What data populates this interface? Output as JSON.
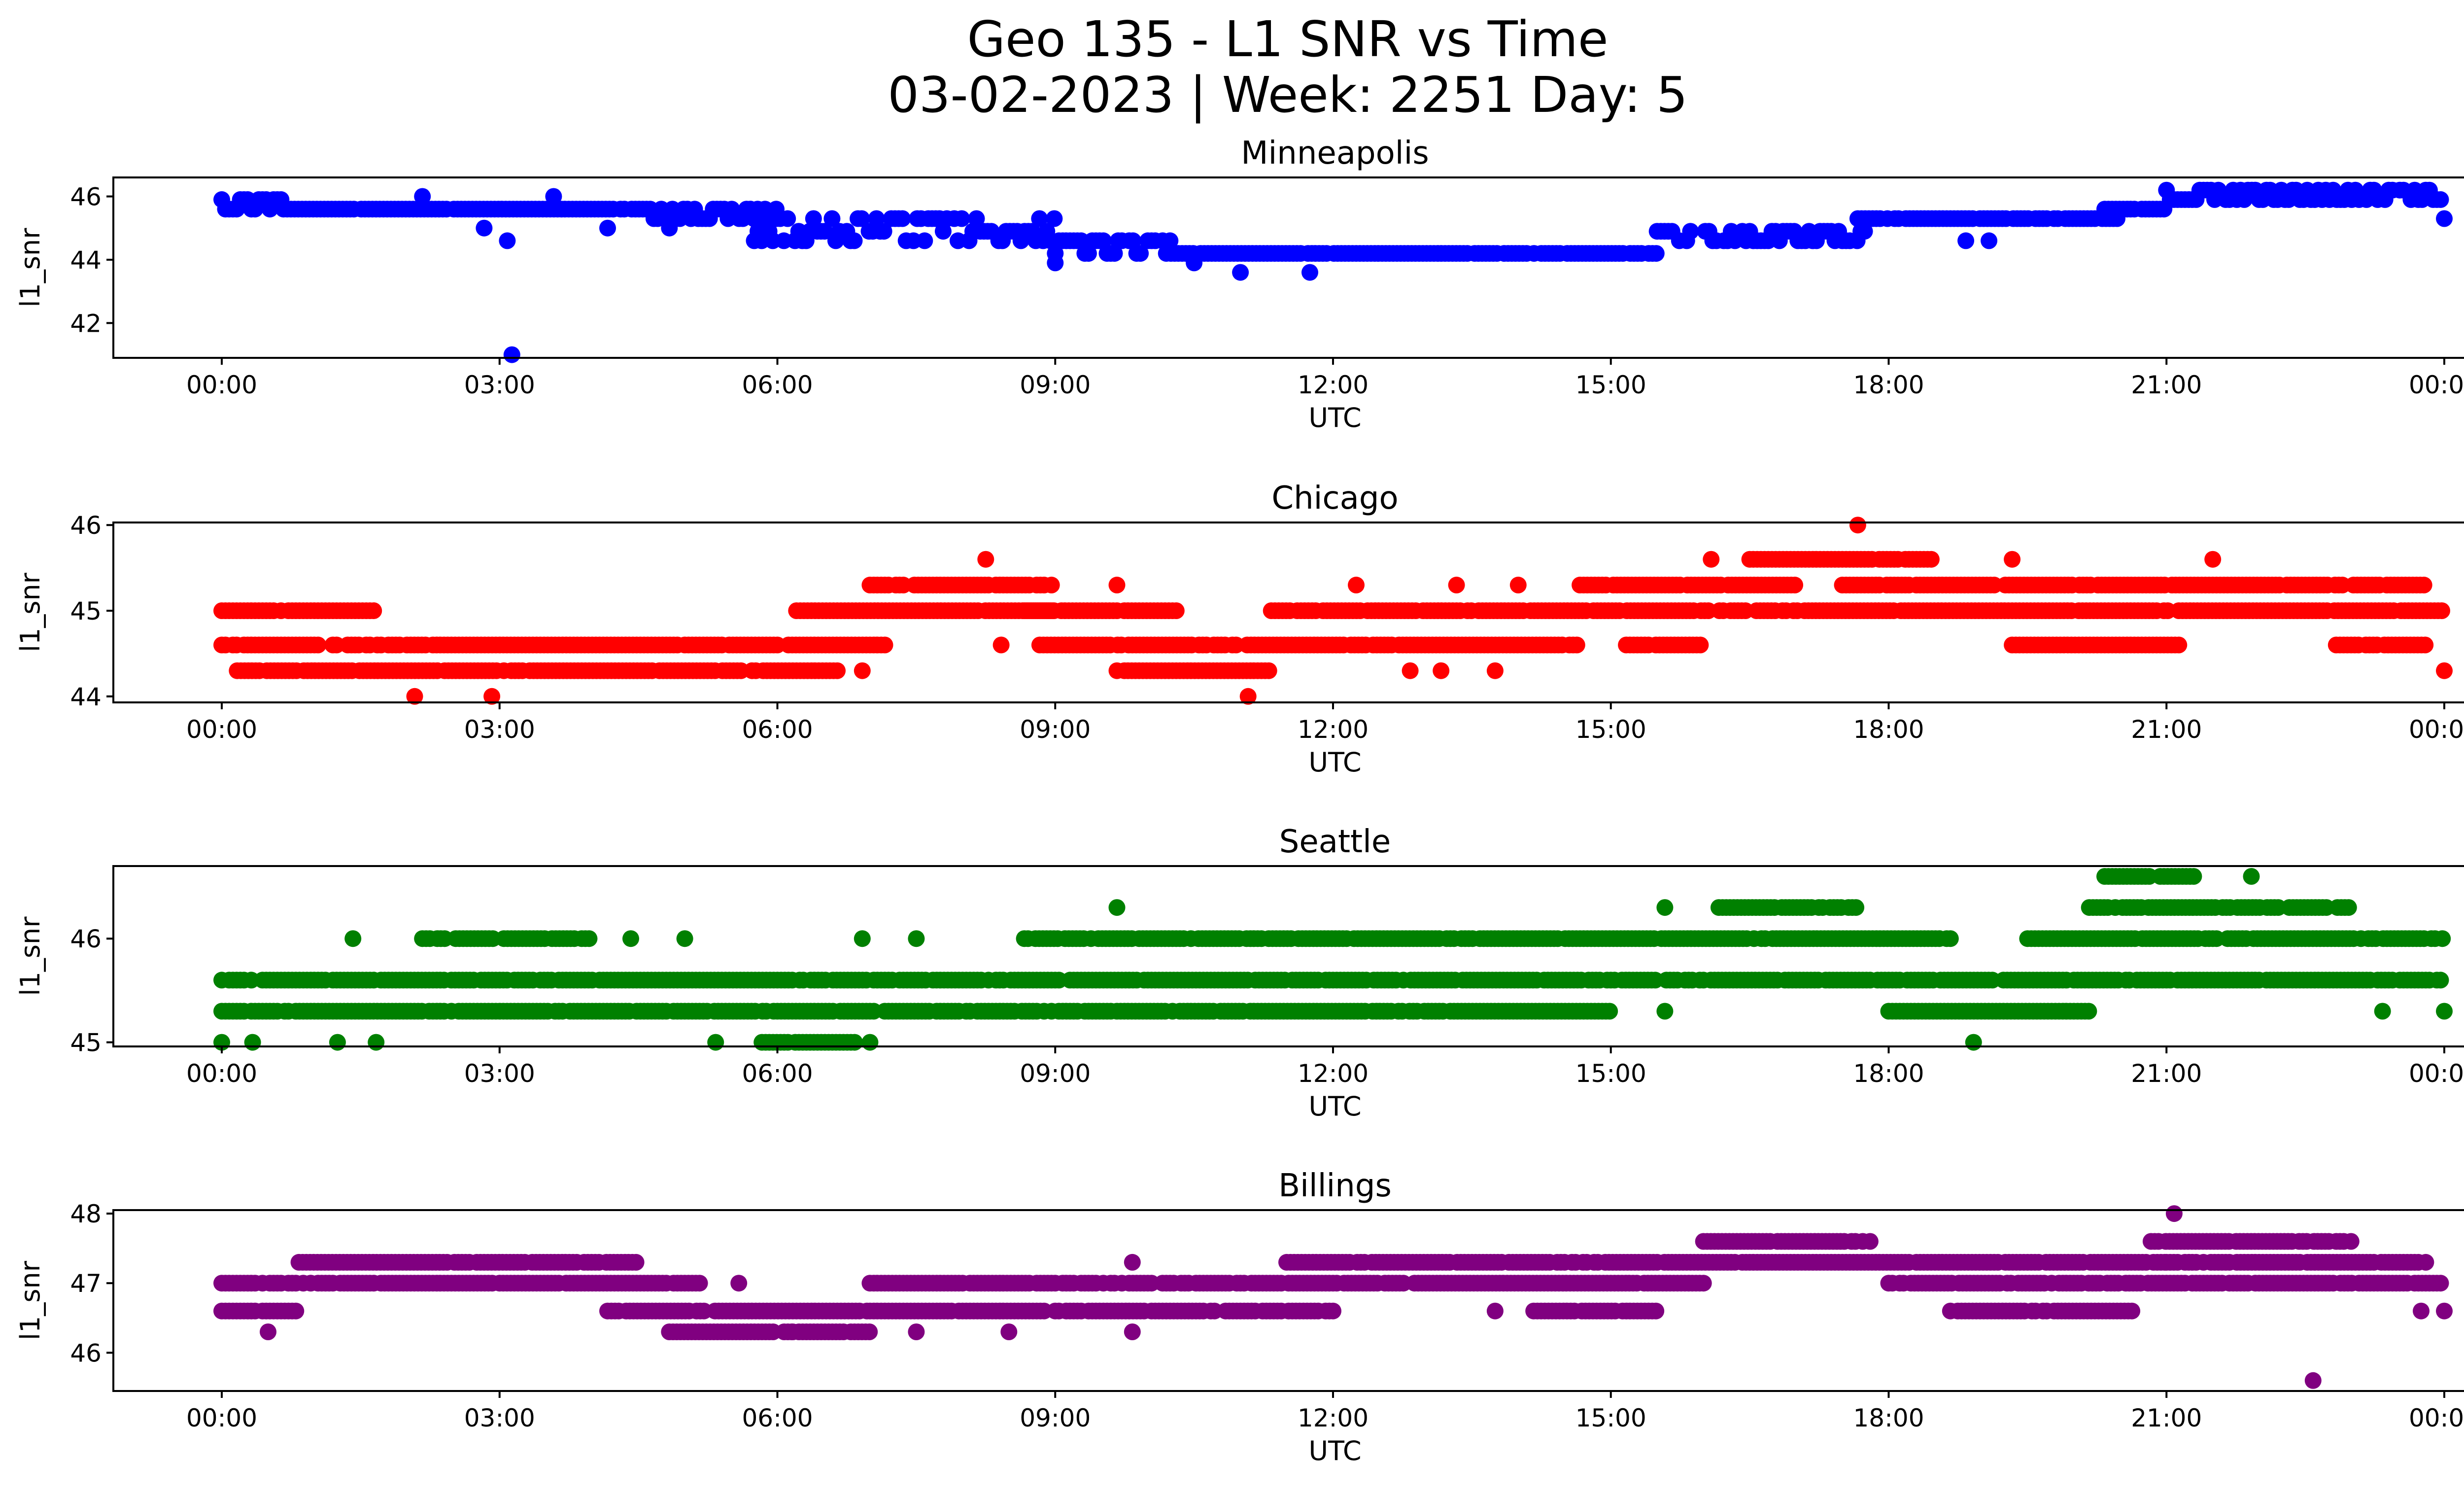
{
  "figure": {
    "title_line1": "Geo 135 - L1 SNR vs Time",
    "title_line2": "03-02-2023 | Week: 2251 Day: 5"
  },
  "chart_data": [
    {
      "type": "scatter",
      "title": "Minneapolis",
      "xlabel": "UTC",
      "ylabel": "l1_snr",
      "color": "#0000ff",
      "x_ticks": [
        "00:00",
        "03:00",
        "06:00",
        "09:00",
        "12:00",
        "15:00",
        "18:00",
        "21:00",
        "00:00"
      ],
      "y_ticks": [
        42,
        44,
        46
      ],
      "xlim": [
        "00:00",
        "24:00"
      ],
      "ylim": [
        40.9,
        46.6
      ],
      "grid": false,
      "segments": [
        {
          "from": "00:00",
          "to": "00:40",
          "values": [
            45.9,
            45.6
          ]
        },
        {
          "from": "00:40",
          "to": "04:40",
          "values": [
            45.6
          ]
        },
        {
          "from": "04:40",
          "to": "06:00",
          "values": [
            45.6,
            45.3
          ]
        },
        {
          "from": "05:45",
          "to": "09:00",
          "values": [
            45.3,
            44.9,
            44.6
          ]
        },
        {
          "from": "09:00",
          "to": "10:15",
          "values": [
            44.6,
            44.2
          ]
        },
        {
          "from": "10:15",
          "to": "15:30",
          "values": [
            44.2
          ]
        },
        {
          "from": "15:30",
          "to": "17:45",
          "values": [
            44.6,
            44.9
          ]
        },
        {
          "from": "17:40",
          "to": "20:30",
          "values": [
            45.3
          ]
        },
        {
          "from": "20:20",
          "to": "21:00",
          "values": [
            45.6
          ]
        },
        {
          "from": "21:00",
          "to": "24:00",
          "values": [
            45.9,
            46.2
          ]
        }
      ],
      "outliers": [
        {
          "x": "03:08",
          "y": 41.0
        },
        {
          "x": "03:05",
          "y": 44.6
        },
        {
          "x": "02:50",
          "y": 45.0
        },
        {
          "x": "11:00",
          "y": 43.6
        },
        {
          "x": "11:45",
          "y": 43.6
        },
        {
          "x": "09:00",
          "y": 43.9
        },
        {
          "x": "03:35",
          "y": 46.0
        },
        {
          "x": "02:10",
          "y": 46.0
        },
        {
          "x": "18:50",
          "y": 44.6
        },
        {
          "x": "04:10",
          "y": 45.0
        },
        {
          "x": "04:50",
          "y": 45.0
        },
        {
          "x": "10:30",
          "y": 43.9
        },
        {
          "x": "24:00",
          "y": 45.3
        },
        {
          "x": "19:05",
          "y": 44.6
        }
      ]
    },
    {
      "type": "scatter",
      "title": "Chicago",
      "xlabel": "UTC",
      "ylabel": "l1_snr",
      "color": "#ff0000",
      "x_ticks": [
        "00:00",
        "03:00",
        "06:00",
        "09:00",
        "12:00",
        "15:00",
        "18:00",
        "21:00",
        "00:00"
      ],
      "y_ticks": [
        44,
        45,
        46
      ],
      "xlim": [
        "00:00",
        "24:00"
      ],
      "ylim": [
        43.93,
        46.03
      ],
      "grid": false,
      "segments": [
        {
          "from": "00:00",
          "to": "07:10",
          "values": [
            44.6
          ]
        },
        {
          "from": "00:00",
          "to": "01:40",
          "values": [
            45.0
          ]
        },
        {
          "from": "00:10",
          "to": "06:40",
          "values": [
            44.3
          ]
        },
        {
          "from": "06:10",
          "to": "09:00",
          "values": [
            45.0
          ]
        },
        {
          "from": "07:00",
          "to": "09:00",
          "values": [
            45.3
          ]
        },
        {
          "from": "08:50",
          "to": "14:40",
          "values": [
            44.6
          ]
        },
        {
          "from": "08:40",
          "to": "10:20",
          "values": [
            45.0
          ]
        },
        {
          "from": "09:40",
          "to": "11:20",
          "values": [
            44.3
          ]
        },
        {
          "from": "11:20",
          "to": "24:00",
          "values": [
            45.0
          ]
        },
        {
          "from": "14:40",
          "to": "17:00",
          "values": [
            45.3
          ]
        },
        {
          "from": "15:10",
          "to": "16:00",
          "values": [
            44.6
          ]
        },
        {
          "from": "16:30",
          "to": "18:30",
          "values": [
            45.6
          ]
        },
        {
          "from": "17:30",
          "to": "23:50",
          "values": [
            45.3
          ]
        },
        {
          "from": "19:20",
          "to": "21:10",
          "values": [
            44.6
          ]
        },
        {
          "from": "22:50",
          "to": "23:50",
          "values": [
            44.6
          ]
        }
      ],
      "outliers": [
        {
          "x": "02:05",
          "y": 44.0
        },
        {
          "x": "02:55",
          "y": 44.0
        },
        {
          "x": "11:05",
          "y": 44.0
        },
        {
          "x": "17:40",
          "y": 46.0
        },
        {
          "x": "08:15",
          "y": 45.6
        },
        {
          "x": "16:05",
          "y": 45.6
        },
        {
          "x": "19:20",
          "y": 45.6
        },
        {
          "x": "21:30",
          "y": 45.6
        },
        {
          "x": "12:15",
          "y": 45.3
        },
        {
          "x": "13:20",
          "y": 45.3
        },
        {
          "x": "14:00",
          "y": 45.3
        },
        {
          "x": "09:40",
          "y": 45.3
        },
        {
          "x": "13:10",
          "y": 44.3
        },
        {
          "x": "13:45",
          "y": 44.3
        },
        {
          "x": "12:50",
          "y": 44.3
        },
        {
          "x": "24:00",
          "y": 44.3
        },
        {
          "x": "06:55",
          "y": 44.3
        },
        {
          "x": "08:25",
          "y": 44.6
        }
      ]
    },
    {
      "type": "scatter",
      "title": "Seattle",
      "xlabel": "UTC",
      "ylabel": "l1_snr",
      "color": "#008000",
      "x_ticks": [
        "00:00",
        "03:00",
        "06:00",
        "09:00",
        "12:00",
        "15:00",
        "18:00",
        "21:00",
        "00:00"
      ],
      "y_ticks": [
        45,
        46
      ],
      "xlim": [
        "00:00",
        "24:00"
      ],
      "ylim": [
        44.96,
        46.7
      ],
      "grid": false,
      "segments": [
        {
          "from": "00:00",
          "to": "24:00",
          "values": [
            45.6
          ]
        },
        {
          "from": "00:00",
          "to": "09:40",
          "values": [
            45.3
          ]
        },
        {
          "from": "09:40",
          "to": "15:00",
          "values": [
            45.3
          ]
        },
        {
          "from": "18:00",
          "to": "20:10",
          "values": [
            45.3
          ]
        },
        {
          "from": "02:10",
          "to": "04:00",
          "values": [
            46.0
          ]
        },
        {
          "from": "08:40",
          "to": "18:40",
          "values": [
            46.0
          ]
        },
        {
          "from": "19:30",
          "to": "24:00",
          "values": [
            46.0
          ]
        },
        {
          "from": "16:10",
          "to": "17:40",
          "values": [
            46.3
          ]
        },
        {
          "from": "20:10",
          "to": "23:00",
          "values": [
            46.3
          ]
        },
        {
          "from": "20:20",
          "to": "21:20",
          "values": [
            46.6
          ]
        },
        {
          "from": "05:50",
          "to": "06:50",
          "values": [
            45.0
          ]
        }
      ],
      "outliers": [
        {
          "x": "00:00",
          "y": 45.0
        },
        {
          "x": "00:20",
          "y": 45.0
        },
        {
          "x": "01:15",
          "y": 45.0
        },
        {
          "x": "01:40",
          "y": 45.0
        },
        {
          "x": "05:20",
          "y": 45.0
        },
        {
          "x": "07:00",
          "y": 45.0
        },
        {
          "x": "18:55",
          "y": 45.0
        },
        {
          "x": "01:25",
          "y": 46.0
        },
        {
          "x": "04:25",
          "y": 46.0
        },
        {
          "x": "05:00",
          "y": 46.0
        },
        {
          "x": "06:55",
          "y": 46.0
        },
        {
          "x": "07:30",
          "y": 46.0
        },
        {
          "x": "09:40",
          "y": 46.3
        },
        {
          "x": "15:35",
          "y": 46.3
        },
        {
          "x": "21:55",
          "y": 46.6
        },
        {
          "x": "23:20",
          "y": 45.3
        },
        {
          "x": "24:00",
          "y": 45.3
        },
        {
          "x": "15:35",
          "y": 45.3
        }
      ]
    },
    {
      "type": "scatter",
      "title": "Billings",
      "xlabel": "UTC",
      "ylabel": "l1_snr",
      "color": "#800080",
      "x_ticks": [
        "00:00",
        "03:00",
        "06:00",
        "09:00",
        "12:00",
        "15:00",
        "18:00",
        "21:00",
        "00:00"
      ],
      "y_ticks": [
        46,
        47,
        48
      ],
      "xlim": [
        "00:00",
        "24:00"
      ],
      "ylim": [
        45.45,
        48.05
      ],
      "grid": false,
      "segments": [
        {
          "from": "00:00",
          "to": "05:10",
          "values": [
            47.0
          ]
        },
        {
          "from": "00:00",
          "to": "00:50",
          "values": [
            46.6
          ]
        },
        {
          "from": "00:50",
          "to": "04:30",
          "values": [
            47.3
          ]
        },
        {
          "from": "04:10",
          "to": "07:00",
          "values": [
            46.6
          ]
        },
        {
          "from": "04:50",
          "to": "07:00",
          "values": [
            46.3
          ]
        },
        {
          "from": "07:00",
          "to": "16:00",
          "values": [
            47.0
          ]
        },
        {
          "from": "07:00",
          "to": "12:00",
          "values": [
            46.6
          ]
        },
        {
          "from": "11:30",
          "to": "21:00",
          "values": [
            47.3
          ]
        },
        {
          "from": "14:10",
          "to": "15:30",
          "values": [
            46.6
          ]
        },
        {
          "from": "16:00",
          "to": "17:50",
          "values": [
            47.6
          ]
        },
        {
          "from": "18:40",
          "to": "20:40",
          "values": [
            46.6
          ]
        },
        {
          "from": "18:00",
          "to": "24:00",
          "values": [
            47.0
          ]
        },
        {
          "from": "20:50",
          "to": "23:00",
          "values": [
            47.6
          ]
        },
        {
          "from": "21:00",
          "to": "23:50",
          "values": [
            47.3
          ]
        }
      ],
      "outliers": [
        {
          "x": "00:30",
          "y": 46.3
        },
        {
          "x": "06:10",
          "y": 46.3
        },
        {
          "x": "07:30",
          "y": 46.3
        },
        {
          "x": "08:30",
          "y": 46.3
        },
        {
          "x": "09:50",
          "y": 46.3
        },
        {
          "x": "21:05",
          "y": 48.0
        },
        {
          "x": "22:35",
          "y": 45.6
        },
        {
          "x": "23:45",
          "y": 46.6
        },
        {
          "x": "24:00",
          "y": 46.6
        },
        {
          "x": "09:50",
          "y": 47.3
        },
        {
          "x": "05:35",
          "y": 47.0
        },
        {
          "x": "13:45",
          "y": 46.6
        }
      ]
    }
  ]
}
